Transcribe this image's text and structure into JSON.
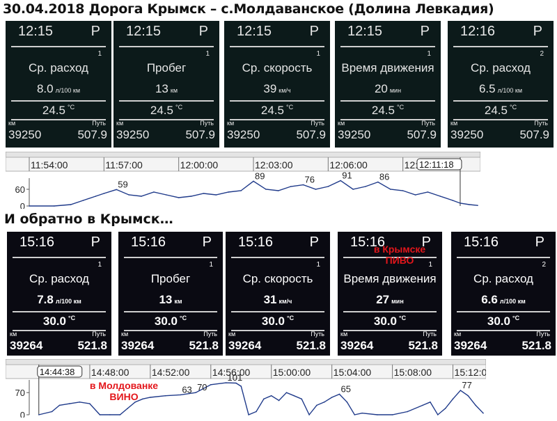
{
  "title_top": "30.04.2018 Дорога Крымск – с.Молдаванское (Долина Левкадия)",
  "title_bottom": "И обратно в Крымск…",
  "colors": {
    "screen_bg": "#0c1a1a",
    "night_bg": "#0a0a12",
    "note_red": "#e3161b",
    "chart_line": "#1f3a8a"
  },
  "screens_top": [
    {
      "time": "12:15",
      "pin": "P",
      "index": "1",
      "label": "Ср. расход",
      "value": "8.0",
      "unit": "л/100 км",
      "temp": "24.5",
      "temp_unit": "°C",
      "km_label": "км",
      "odometer": "39250",
      "trip_label": "Путь",
      "trip": "507.9"
    },
    {
      "time": "12:15",
      "pin": "P",
      "index": "1",
      "label": "Пробег",
      "value": "13",
      "unit": "км",
      "temp": "24.5",
      "temp_unit": "°C",
      "km_label": "км",
      "odometer": "39250",
      "trip_label": "Путь",
      "trip": "507.9"
    },
    {
      "time": "12:15",
      "pin": "P",
      "index": "1",
      "label": "Ср. скорость",
      "value": "39",
      "unit": "км/ч",
      "temp": "24.5",
      "temp_unit": "°C",
      "km_label": "км",
      "odometer": "39250",
      "trip_label": "Путь",
      "trip": "507.9"
    },
    {
      "time": "12:15",
      "pin": "P",
      "index": "1",
      "label": "Время движения",
      "value": "20",
      "unit": "мин",
      "temp": "24.5",
      "temp_unit": "°C",
      "km_label": "км",
      "odometer": "39250",
      "trip_label": "Путь",
      "trip": "507.9"
    },
    {
      "time": "12:16",
      "pin": "P",
      "index": "2",
      "label": "Ср. расход",
      "value": "6.5",
      "unit": "л/100 км",
      "temp": "24.5",
      "temp_unit": "°C",
      "km_label": "км",
      "odometer": "39250",
      "trip_label": "Путь",
      "trip": "507.9"
    }
  ],
  "screens_bottom": [
    {
      "time": "15:16",
      "pin": "P",
      "index": "1",
      "label": "Ср. расход",
      "value": "7.8",
      "unit": "л/100 км",
      "temp": "30.0",
      "temp_unit": "°C",
      "km_label": "км",
      "odometer": "39264",
      "trip_label": "Путь",
      "trip": "521.8"
    },
    {
      "time": "15:16",
      "pin": "P",
      "index": "1",
      "label": "Пробег",
      "value": "13",
      "unit": "км",
      "temp": "30.0",
      "temp_unit": "°C",
      "km_label": "км",
      "odometer": "39264",
      "trip_label": "Путь",
      "trip": "521.8"
    },
    {
      "time": "15:16",
      "pin": "P",
      "index": "1",
      "label": "Ср. скорость",
      "value": "31",
      "unit": "км/ч",
      "temp": "30.0",
      "temp_unit": "°C",
      "km_label": "км",
      "odometer": "39264",
      "trip_label": "Путь",
      "trip": "521.8"
    },
    {
      "time": "15:16",
      "pin": "P",
      "index": "1",
      "label": "Время движения",
      "value": "27",
      "unit": "мин",
      "temp": "30.0",
      "temp_unit": "°C",
      "km_label": "км",
      "odometer": "39264",
      "trip_label": "Путь",
      "trip": "521.8"
    },
    {
      "time": "15:16",
      "pin": "P",
      "index": "2",
      "label": "Ср. расход",
      "value": "6.6",
      "unit": "л/100 км",
      "temp": "30.0",
      "temp_unit": "°C",
      "km_label": "км",
      "odometer": "39264",
      "trip_label": "Путь",
      "trip": "521.8"
    }
  ],
  "notes": {
    "pivo_line1": "в Крымске",
    "pivo_line2": "ПИВО",
    "vino_line1": "в Молдованке",
    "vino_line2": "ВИНО"
  },
  "chart_data": [
    {
      "type": "line",
      "title": "",
      "xlabel": "",
      "ylabel": "",
      "x_ticks": [
        "11:54:00",
        "11:57:00",
        "12:00:00",
        "12:03:00",
        "12:06:00",
        "12:09:00"
      ],
      "cursor_label": "12:11:18",
      "y_ticks": [
        "60",
        "0"
      ],
      "ylim": [
        0,
        100
      ],
      "xlim": [
        "11:54:00",
        "12:12:00"
      ],
      "grid": false,
      "series": [
        {
          "x": [
            "11:54:00",
            "11:55:00",
            "11:55:40",
            "11:56:10",
            "11:56:40",
            "11:57:00",
            "11:57:30",
            "11:58:00",
            "11:58:30",
            "11:59:00",
            "11:59:30",
            "12:00:00",
            "12:00:30",
            "12:01:00",
            "12:01:30",
            "12:02:00",
            "12:02:30",
            "12:03:00",
            "12:03:30",
            "12:04:00",
            "12:04:30",
            "12:05:00",
            "12:05:30",
            "12:06:00",
            "12:06:30",
            "12:07:00",
            "12:07:30",
            "12:08:00",
            "12:08:30",
            "12:09:00",
            "12:09:30",
            "12:10:00",
            "12:10:30",
            "12:11:00",
            "12:11:18",
            "12:11:40",
            "12:12:00"
          ],
          "y": [
            0,
            0,
            5,
            20,
            35,
            45,
            59,
            40,
            35,
            50,
            40,
            30,
            35,
            45,
            40,
            50,
            55,
            89,
            60,
            55,
            70,
            76,
            60,
            70,
            91,
            60,
            70,
            86,
            60,
            55,
            40,
            50,
            35,
            20,
            10,
            5,
            2
          ]
        }
      ],
      "annotations": [
        "59",
        "89",
        "76",
        "91",
        "86"
      ]
    },
    {
      "type": "line",
      "title": "",
      "xlabel": "",
      "ylabel": "",
      "x_ticks": [
        "14:48:00",
        "14:52:00",
        "14:56:00",
        "15:00:00",
        "15:04:00",
        "15:08:00",
        "15:12:00"
      ],
      "cursor_label": "14:44:38",
      "y_ticks": [
        "70",
        "0"
      ],
      "ylim": [
        0,
        110
      ],
      "xlim": [
        "14:44:00",
        "15:14:00"
      ],
      "grid": false,
      "series": [
        {
          "x": [
            "14:44:38",
            "14:45:30",
            "14:46:00",
            "14:46:40",
            "14:47:20",
            "14:48:00",
            "14:48:40",
            "14:49:20",
            "14:50:00",
            "14:50:30",
            "14:51:00",
            "14:51:30",
            "14:52:00",
            "14:53:00",
            "14:54:00",
            "14:55:00",
            "14:56:00",
            "14:57:00",
            "14:57:40",
            "14:58:00",
            "14:58:30",
            "14:59:00",
            "14:59:30",
            "15:00:00",
            "15:00:30",
            "15:01:00",
            "15:01:30",
            "15:02:00",
            "15:02:30",
            "15:03:00",
            "15:03:30",
            "15:04:00",
            "15:04:30",
            "15:05:00",
            "15:05:30",
            "15:06:00",
            "15:07:00",
            "15:08:00",
            "15:09:00",
            "15:10:00",
            "15:10:30",
            "15:11:00",
            "15:11:30",
            "15:12:00",
            "15:12:30",
            "15:13:00",
            "15:13:30",
            "15:14:00"
          ],
          "y": [
            0,
            10,
            30,
            35,
            40,
            35,
            0,
            0,
            0,
            20,
            40,
            50,
            55,
            60,
            63,
            70,
            95,
            101,
            100,
            90,
            0,
            10,
            50,
            60,
            45,
            70,
            60,
            50,
            0,
            30,
            40,
            55,
            65,
            40,
            0,
            5,
            0,
            0,
            10,
            30,
            40,
            0,
            20,
            50,
            77,
            60,
            30,
            5
          ]
        }
      ],
      "annotations": [
        "63",
        "101",
        "70",
        "65",
        "77"
      ]
    }
  ]
}
